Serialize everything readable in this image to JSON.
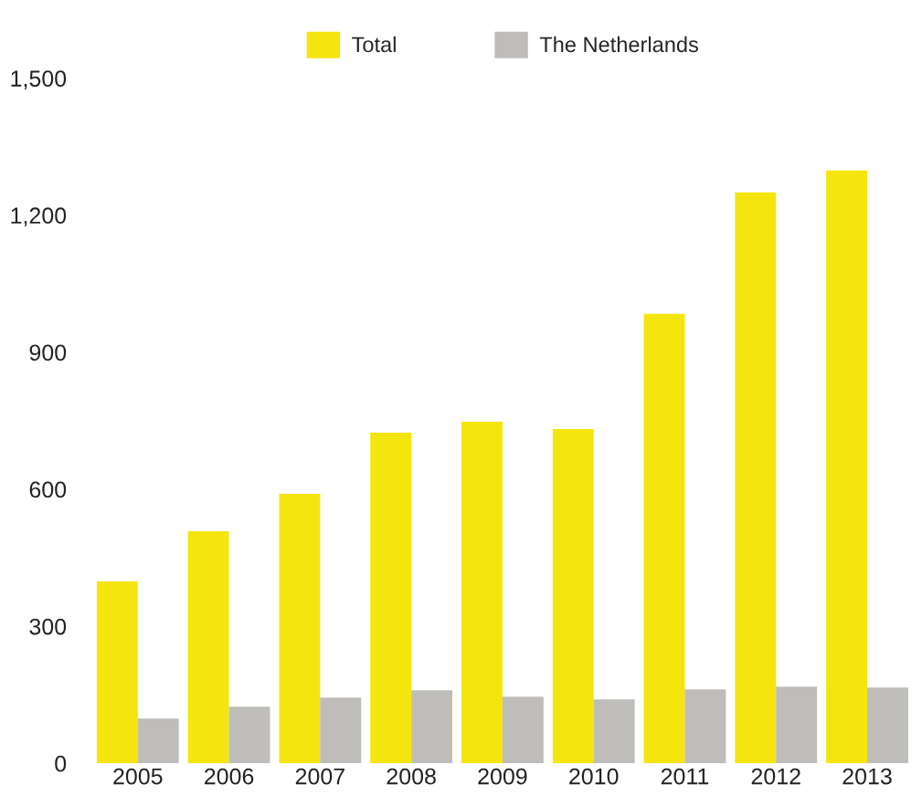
{
  "chart_data": {
    "type": "bar",
    "categories": [
      "2005",
      "2006",
      "2007",
      "2008",
      "2009",
      "2010",
      "2011",
      "2012",
      "2013"
    ],
    "series": [
      {
        "name": "Total",
        "color": "#f5e50e",
        "values": [
          398,
          508,
          590,
          724,
          748,
          732,
          984,
          1250,
          1298
        ]
      },
      {
        "name": "The Netherlands",
        "color": "#bfbdba",
        "values": [
          98,
          124,
          144,
          160,
          146,
          140,
          162,
          168,
          166
        ]
      }
    ],
    "ylim": [
      0,
      1500
    ],
    "yticks": [
      0,
      {
        "value": 300,
        "label": "300"
      },
      {
        "value": 600,
        "label": "600"
      },
      {
        "value": 900,
        "label": "900"
      },
      {
        "value": 1200,
        "label": "1,200"
      },
      {
        "value": 1500,
        "label": "1,500"
      }
    ],
    "grid": false,
    "legend": "top"
  }
}
